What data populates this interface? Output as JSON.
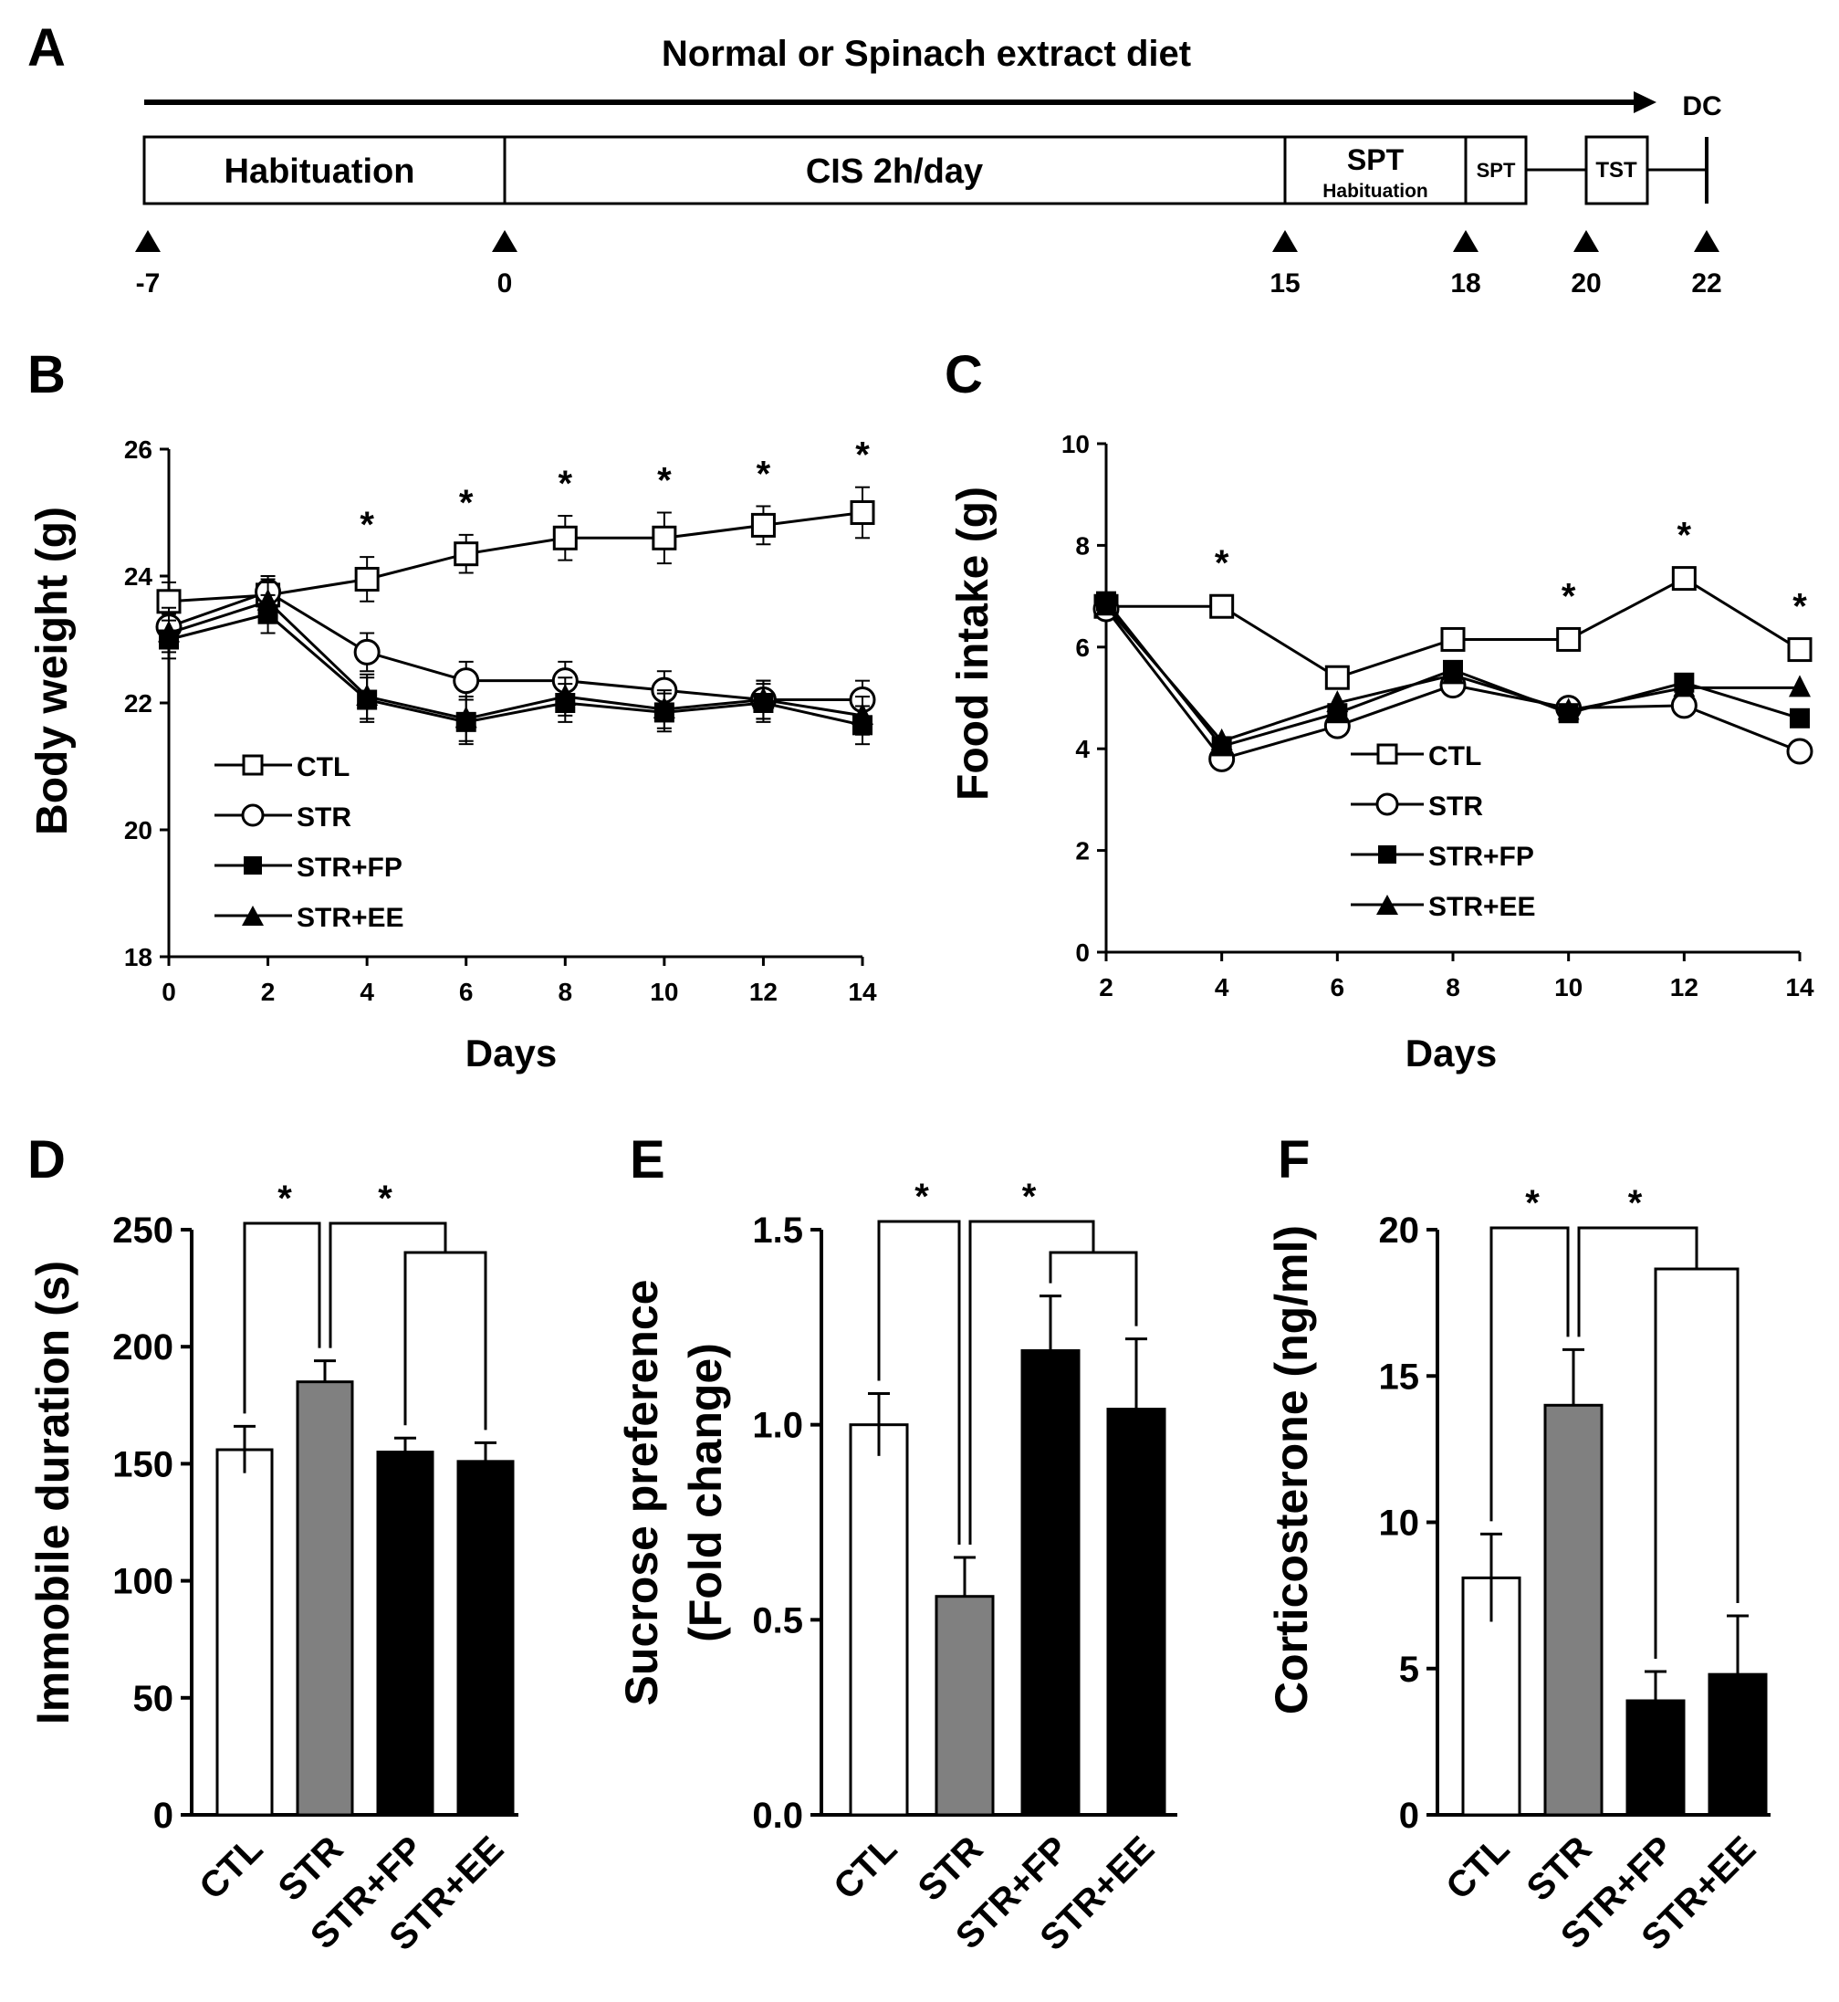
{
  "timeline": {
    "panel_label": "A",
    "arrow_label": "Normal or Spinach extract diet",
    "end_label": "DC",
    "segments": [
      {
        "label": "Habituation",
        "sub": ""
      },
      {
        "label": "CIS 2h/day",
        "sub": ""
      },
      {
        "label": "SPT",
        "sub": "Habituation"
      },
      {
        "label": "SPT",
        "sub": ""
      },
      {
        "label": "TST",
        "sub": ""
      }
    ],
    "day_markers": [
      "-7",
      "0",
      "15",
      "18",
      "20",
      "22"
    ]
  },
  "legend_groups": [
    "CTL",
    "STR",
    "STR+FP",
    "STR+EE"
  ],
  "chart_data": [
    {
      "panel_label": "B",
      "type": "line",
      "xlabel": "Days",
      "ylabel": "Body weight (g)",
      "x": [
        0,
        2,
        4,
        6,
        8,
        10,
        12,
        14
      ],
      "xticks": [
        "0",
        "2",
        "4",
        "6",
        "8",
        "10",
        "12",
        "14"
      ],
      "xlim": [
        0,
        14
      ],
      "ylim": [
        18,
        26
      ],
      "yticks": [
        "18",
        "20",
        "22",
        "24",
        "26"
      ],
      "series": [
        {
          "name": "CTL",
          "marker": "open-square",
          "values": [
            23.6,
            23.7,
            23.95,
            24.35,
            24.6,
            24.6,
            24.8,
            25.0
          ],
          "errors": [
            0.3,
            0.25,
            0.35,
            0.3,
            0.35,
            0.4,
            0.3,
            0.4
          ]
        },
        {
          "name": "STR",
          "marker": "open-circle",
          "values": [
            23.2,
            23.75,
            22.8,
            22.35,
            22.35,
            22.2,
            22.05,
            22.05
          ],
          "errors": [
            0.3,
            0.25,
            0.3,
            0.3,
            0.3,
            0.3,
            0.3,
            0.3
          ]
        },
        {
          "name": "STR+FP",
          "marker": "filled-square",
          "values": [
            23.0,
            23.4,
            22.05,
            21.7,
            22.0,
            21.85,
            22.0,
            21.65
          ],
          "errors": [
            0.3,
            0.3,
            0.35,
            0.35,
            0.3,
            0.3,
            0.3,
            0.3
          ]
        },
        {
          "name": "STR+EE",
          "marker": "filled-triangle",
          "values": [
            23.1,
            23.6,
            22.1,
            21.75,
            22.1,
            21.9,
            22.05,
            21.8
          ],
          "errors": [
            0.3,
            0.3,
            0.35,
            0.35,
            0.3,
            0.3,
            0.3,
            0.3
          ]
        }
      ],
      "significance": [
        {
          "x": 4,
          "label": "*"
        },
        {
          "x": 6,
          "label": "*"
        },
        {
          "x": 8,
          "label": "*"
        },
        {
          "x": 10,
          "label": "*"
        },
        {
          "x": 12,
          "label": "*"
        },
        {
          "x": 14,
          "label": "*"
        }
      ]
    },
    {
      "panel_label": "C",
      "type": "line",
      "xlabel": "Days",
      "ylabel": "Food intake (g)",
      "x": [
        2,
        4,
        6,
        8,
        10,
        12,
        14
      ],
      "xticks": [
        "2",
        "4",
        "6",
        "8",
        "10",
        "12",
        "14"
      ],
      "xlim": [
        2,
        14
      ],
      "ylim": [
        0,
        10
      ],
      "yticks": [
        "0",
        "2",
        "4",
        "6",
        "8",
        "10"
      ],
      "series": [
        {
          "name": "CTL",
          "marker": "open-square",
          "values": [
            6.8,
            6.8,
            5.4,
            6.15,
            6.15,
            7.35,
            5.95
          ]
        },
        {
          "name": "STR",
          "marker": "open-circle",
          "values": [
            6.75,
            3.8,
            4.45,
            5.25,
            4.8,
            4.85,
            3.95
          ]
        },
        {
          "name": "STR+FP",
          "marker": "filled-square",
          "values": [
            6.9,
            4.05,
            4.7,
            5.55,
            4.7,
            5.3,
            4.6
          ]
        },
        {
          "name": "STR+EE",
          "marker": "filled-triangle",
          "values": [
            6.8,
            4.15,
            4.9,
            5.45,
            4.75,
            5.2,
            5.2
          ]
        }
      ],
      "significance": [
        {
          "x": 4,
          "label": "*"
        },
        {
          "x": 10,
          "label": "*"
        },
        {
          "x": 12,
          "label": "*"
        },
        {
          "x": 14,
          "label": "*"
        }
      ]
    },
    {
      "panel_label": "D",
      "type": "bar",
      "ylabel": "Immobile duration (s)",
      "categories": [
        "CTL",
        "STR",
        "STR+FP",
        "STR+EE"
      ],
      "values": [
        156,
        185,
        155,
        151
      ],
      "errors": [
        10,
        9,
        6,
        8
      ],
      "ylim": [
        0,
        250
      ],
      "yticks": [
        "0",
        "50",
        "100",
        "150",
        "200",
        "250"
      ],
      "significance": [
        "*",
        "*"
      ]
    },
    {
      "panel_label": "E",
      "type": "bar",
      "ylabel": "Sucrose preference",
      "ylabel2": "(Fold change)",
      "categories": [
        "CTL",
        "STR",
        "STR+FP",
        "STR+EE"
      ],
      "values": [
        1.0,
        0.56,
        1.19,
        1.04
      ],
      "errors": [
        0.08,
        0.1,
        0.14,
        0.18
      ],
      "ylim": [
        0,
        1.5
      ],
      "yticks": [
        "0.0",
        "0.5",
        "1.0",
        "1.5"
      ],
      "significance": [
        "*",
        "*"
      ]
    },
    {
      "panel_label": "F",
      "type": "bar",
      "ylabel": "Corticosterone (ng/ml)",
      "categories": [
        "CTL",
        "STR",
        "STR+FP",
        "STR+EE"
      ],
      "values": [
        8.1,
        14.0,
        3.9,
        4.8
      ],
      "errors": [
        1.5,
        1.9,
        1.0,
        2.0
      ],
      "ylim": [
        0,
        20
      ],
      "yticks": [
        "0",
        "5",
        "10",
        "15",
        "20"
      ],
      "significance": [
        "*",
        "*"
      ]
    }
  ]
}
